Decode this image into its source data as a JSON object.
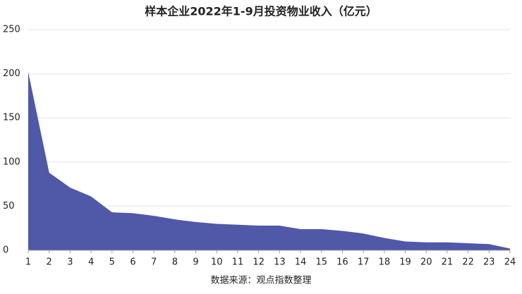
{
  "chart_data": {
    "type": "area",
    "title": "样本企业2022年1-9月投资物业收入（亿元）",
    "x": [
      1,
      2,
      3,
      4,
      5,
      6,
      7,
      8,
      9,
      10,
      11,
      12,
      13,
      14,
      15,
      16,
      17,
      18,
      19,
      20,
      21,
      22,
      23,
      24
    ],
    "values": [
      202,
      88,
      71,
      61,
      43,
      42,
      39,
      35,
      32,
      30,
      29,
      28,
      28,
      24,
      24,
      22,
      19,
      14,
      10,
      9,
      9,
      8,
      7,
      2
    ],
    "color": "#5058a8",
    "xlim": [
      1,
      24
    ],
    "xticks": [
      1,
      2,
      3,
      4,
      5,
      6,
      7,
      8,
      9,
      10,
      11,
      12,
      13,
      14,
      15,
      16,
      17,
      18,
      19,
      20,
      21,
      22,
      23,
      24
    ],
    "ylim": [
      0,
      250
    ],
    "yticks": [
      0,
      50,
      100,
      150,
      200,
      250
    ],
    "grid": true,
    "source": "数据来源：观点指数整理"
  }
}
